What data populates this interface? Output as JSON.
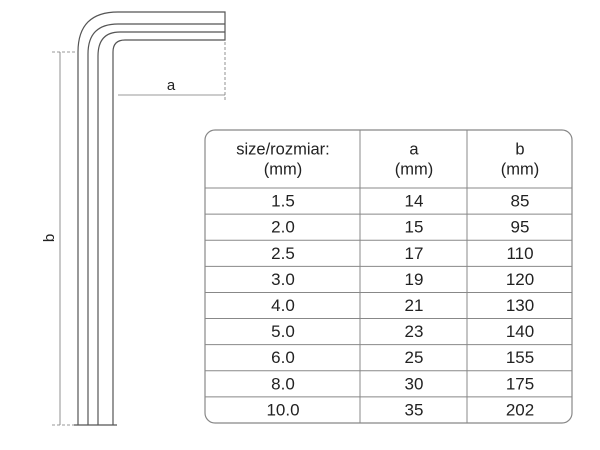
{
  "diagram": {
    "label_a": "a",
    "label_b": "b"
  },
  "table": {
    "header": [
      [
        "size/rozmiar:",
        "(mm)"
      ],
      [
        "a",
        "(mm)"
      ],
      [
        "b",
        "(mm)"
      ]
    ],
    "rows": [
      [
        "1.5",
        "14",
        "85"
      ],
      [
        "2.0",
        "15",
        "95"
      ],
      [
        "2.5",
        "17",
        "110"
      ],
      [
        "3.0",
        "19",
        "120"
      ],
      [
        "4.0",
        "21",
        "130"
      ],
      [
        "5.0",
        "23",
        "140"
      ],
      [
        "6.0",
        "25",
        "155"
      ],
      [
        "8.0",
        "30",
        "175"
      ],
      [
        "10.0",
        "35",
        "202"
      ]
    ]
  }
}
